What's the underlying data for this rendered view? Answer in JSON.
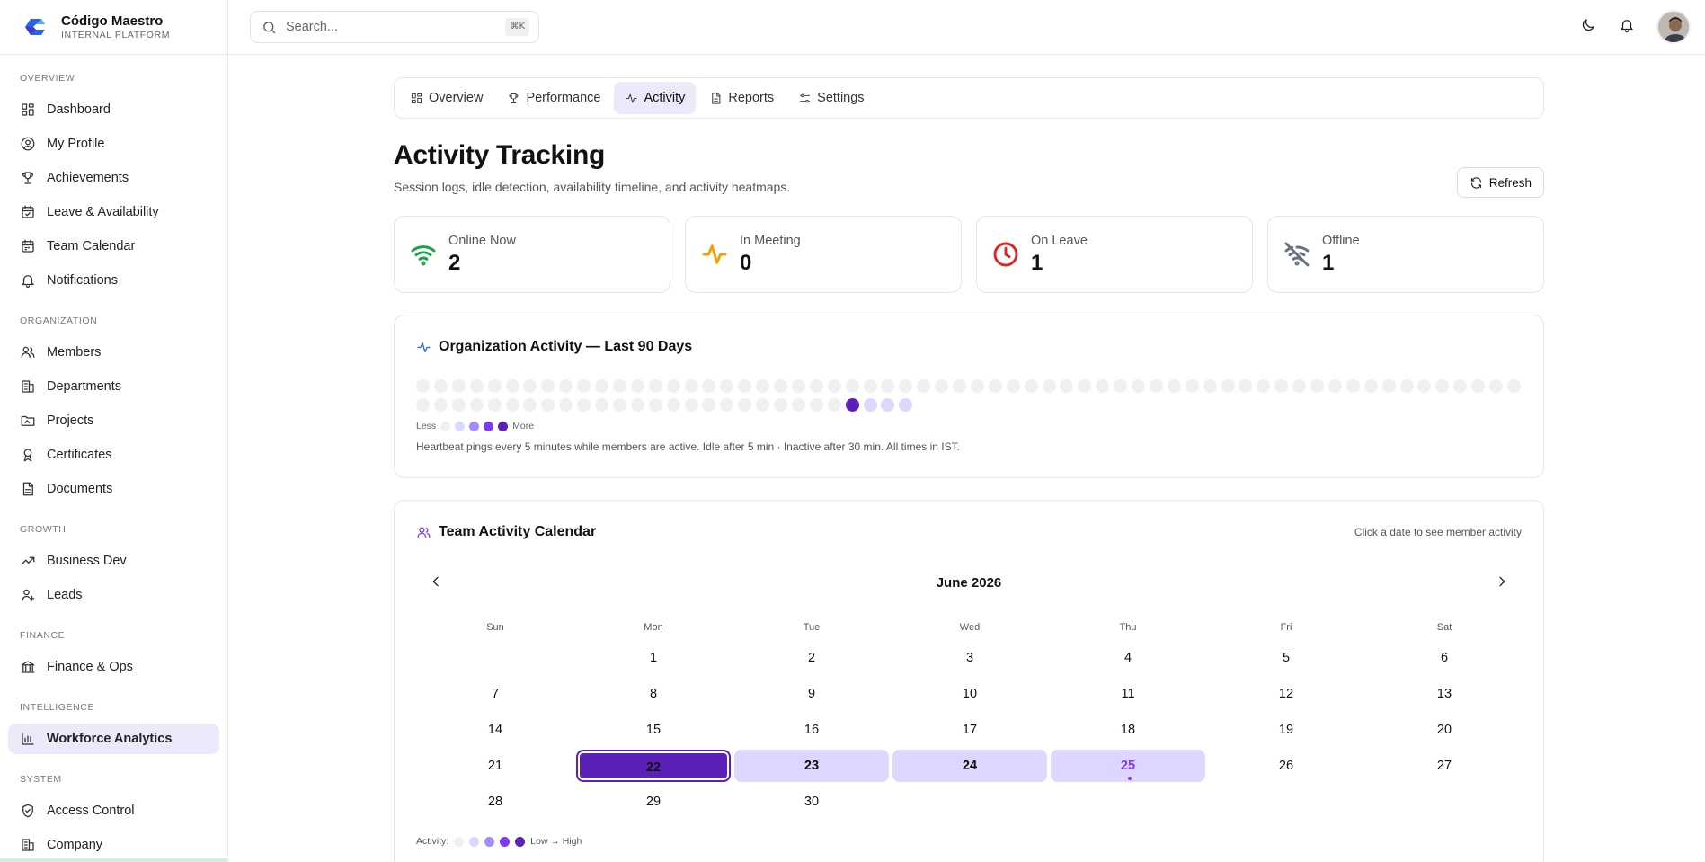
{
  "brand": {
    "name": "Código Maestro",
    "subtitle": "INTERNAL PLATFORM"
  },
  "sidebar": {
    "sections": [
      {
        "label": "OVERVIEW",
        "items": [
          {
            "label": "Dashboard",
            "icon": "dashboard-icon"
          },
          {
            "label": "My Profile",
            "icon": "user-circle-icon"
          },
          {
            "label": "Achievements",
            "icon": "trophy-icon"
          },
          {
            "label": "Leave & Availability",
            "icon": "calendar-check-icon"
          },
          {
            "label": "Team Calendar",
            "icon": "calendar-icon"
          },
          {
            "label": "Notifications",
            "icon": "bell-icon"
          }
        ]
      },
      {
        "label": "ORGANIZATION",
        "items": [
          {
            "label": "Members",
            "icon": "users-icon"
          },
          {
            "label": "Departments",
            "icon": "building-icon"
          },
          {
            "label": "Projects",
            "icon": "folder-icon"
          },
          {
            "label": "Certificates",
            "icon": "award-icon"
          },
          {
            "label": "Documents",
            "icon": "file-icon"
          }
        ]
      },
      {
        "label": "GROWTH",
        "items": [
          {
            "label": "Business Dev",
            "icon": "trending-up-icon"
          },
          {
            "label": "Leads",
            "icon": "user-plus-icon"
          }
        ]
      },
      {
        "label": "FINANCE",
        "items": [
          {
            "label": "Finance & Ops",
            "icon": "bank-icon"
          }
        ]
      },
      {
        "label": "INTELLIGENCE",
        "items": [
          {
            "label": "Workforce Analytics",
            "icon": "bar-chart-icon",
            "active": true
          }
        ]
      },
      {
        "label": "SYSTEM",
        "items": [
          {
            "label": "Access Control",
            "icon": "shield-icon"
          },
          {
            "label": "Company",
            "icon": "building-icon"
          }
        ]
      }
    ]
  },
  "topbar": {
    "search_placeholder": "Search...",
    "shortcut": "⌘K"
  },
  "tabs": [
    {
      "label": "Overview",
      "icon": "grid-icon"
    },
    {
      "label": "Performance",
      "icon": "trophy-icon"
    },
    {
      "label": "Activity",
      "icon": "activity-icon",
      "active": true
    },
    {
      "label": "Reports",
      "icon": "file-icon"
    },
    {
      "label": "Settings",
      "icon": "sliders-icon"
    }
  ],
  "page": {
    "title": "Activity Tracking",
    "subtitle": "Session logs, idle detection, availability timeline, and activity heatmaps.",
    "refresh_label": "Refresh"
  },
  "stats": [
    {
      "label": "Online Now",
      "value": "2",
      "icon": "wifi-icon",
      "color": "#16a34a"
    },
    {
      "label": "In Meeting",
      "value": "0",
      "icon": "activity-icon",
      "color": "#f59e0b"
    },
    {
      "label": "On Leave",
      "value": "1",
      "icon": "clock-icon",
      "color": "#dc2626"
    },
    {
      "label": "Offline",
      "value": "1",
      "icon": "wifi-off-icon",
      "color": "#6b7280"
    }
  ],
  "org_activity": {
    "title": "Organization Activity — Last 90 Days",
    "legend_less": "Less",
    "legend_more": "More",
    "note": "Heartbeat pings every 5 minutes while members are active. Idle after 5 min · Inactive after 30 min. All times in IST.",
    "levels": [
      0,
      0,
      0,
      0,
      0,
      0,
      0,
      0,
      0,
      0,
      0,
      0,
      0,
      0,
      0,
      0,
      0,
      0,
      0,
      0,
      0,
      0,
      0,
      0,
      0,
      0,
      0,
      0,
      0,
      0,
      0,
      0,
      0,
      0,
      0,
      0,
      0,
      0,
      0,
      0,
      0,
      0,
      0,
      0,
      0,
      0,
      0,
      0,
      0,
      0,
      0,
      0,
      0,
      0,
      0,
      0,
      0,
      0,
      0,
      0,
      0,
      0,
      0,
      0,
      0,
      0,
      0,
      0,
      0,
      0,
      0,
      0,
      0,
      0,
      0,
      0,
      0,
      0,
      0,
      0,
      0,
      0,
      0,
      0,
      0,
      0,
      4,
      1,
      1,
      1
    ],
    "colors": [
      "#f0f0f2",
      "#ddd6fe",
      "#a78bfa",
      "#7c3aed",
      "#5b21b6"
    ]
  },
  "team_calendar": {
    "title": "Team Activity Calendar",
    "hint": "Click a date to see member activity",
    "month": "June 2026",
    "weekdays": [
      "Sun",
      "Mon",
      "Tue",
      "Wed",
      "Thu",
      "Fri",
      "Sat"
    ],
    "first_weekday": 1,
    "days_in_month": 30,
    "activity": {
      "22": 4,
      "23": 1,
      "24": 1,
      "25": 1
    },
    "selected": 22,
    "today": 25,
    "legend_label": "Activity:",
    "legend_range": "Low → High"
  }
}
